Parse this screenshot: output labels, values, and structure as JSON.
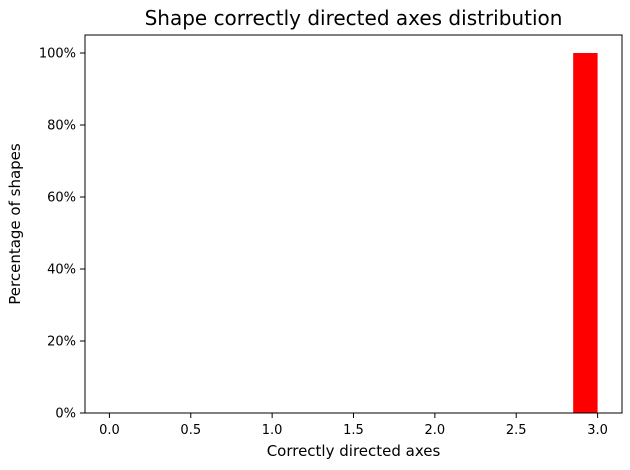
{
  "chart_data": {
    "type": "bar",
    "title": "Shape correctly directed axes distribution",
    "xlabel": "Correctly directed axes",
    "ylabel": "Percentage of shapes",
    "xlim": [
      -0.15,
      3.15
    ],
    "ylim": [
      0,
      105
    ],
    "x_ticks": [
      0.0,
      0.5,
      1.0,
      1.5,
      2.0,
      2.5,
      3.0
    ],
    "x_tick_labels": [
      "0.0",
      "0.5",
      "1.0",
      "1.5",
      "2.0",
      "2.5",
      "3.0"
    ],
    "y_ticks": [
      0,
      20,
      40,
      60,
      80,
      100
    ],
    "y_tick_labels": [
      "0%",
      "20%",
      "40%",
      "60%",
      "80%",
      "100%"
    ],
    "bars": [
      {
        "x_start": 2.85,
        "x_end": 3.0,
        "value": 100
      }
    ],
    "grid": false,
    "legend": "none",
    "bar_color": "#ff0000"
  }
}
